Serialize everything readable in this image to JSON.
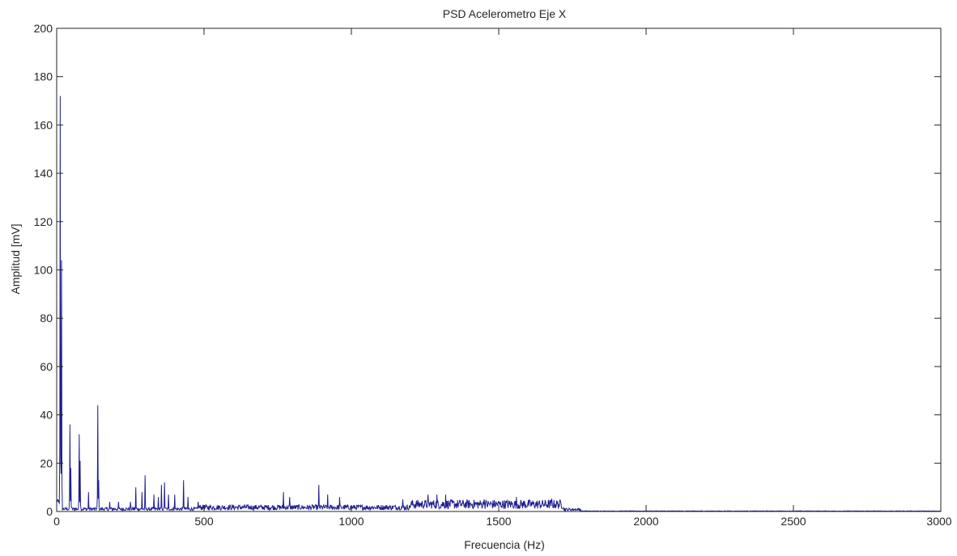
{
  "chart_data": {
    "type": "line",
    "title": "PSD Acelerometro Eje X",
    "xlabel": "Frecuencia (Hz)",
    "ylabel": "Amplitud [mV]",
    "xlim": [
      0,
      3000
    ],
    "ylim": [
      0,
      200
    ],
    "xticks": [
      0,
      500,
      1000,
      1500,
      2000,
      2500,
      3000
    ],
    "yticks": [
      0,
      20,
      40,
      60,
      80,
      100,
      120,
      140,
      160,
      180,
      200
    ],
    "grid": false,
    "legend": "none",
    "line_color": "#1f1f8f",
    "peaks": [
      {
        "x": 12,
        "y": 172
      },
      {
        "x": 16,
        "y": 104
      },
      {
        "x": 45,
        "y": 36
      },
      {
        "x": 48,
        "y": 18
      },
      {
        "x": 76,
        "y": 32
      },
      {
        "x": 79,
        "y": 21
      },
      {
        "x": 108,
        "y": 8
      },
      {
        "x": 140,
        "y": 44
      },
      {
        "x": 143,
        "y": 13
      },
      {
        "x": 180,
        "y": 4
      },
      {
        "x": 210,
        "y": 4
      },
      {
        "x": 250,
        "y": 4
      },
      {
        "x": 268,
        "y": 10
      },
      {
        "x": 290,
        "y": 8
      },
      {
        "x": 300,
        "y": 15
      },
      {
        "x": 330,
        "y": 7
      },
      {
        "x": 345,
        "y": 6
      },
      {
        "x": 355,
        "y": 11
      },
      {
        "x": 366,
        "y": 12
      },
      {
        "x": 380,
        "y": 7
      },
      {
        "x": 400,
        "y": 7
      },
      {
        "x": 430,
        "y": 13
      },
      {
        "x": 445,
        "y": 6
      },
      {
        "x": 480,
        "y": 4
      },
      {
        "x": 770,
        "y": 8
      },
      {
        "x": 790,
        "y": 6
      },
      {
        "x": 890,
        "y": 11
      },
      {
        "x": 920,
        "y": 7
      },
      {
        "x": 960,
        "y": 6
      },
      {
        "x": 1175,
        "y": 5
      },
      {
        "x": 1260,
        "y": 7
      },
      {
        "x": 1290,
        "y": 7
      },
      {
        "x": 1320,
        "y": 7
      },
      {
        "x": 1450,
        "y": 5
      },
      {
        "x": 1560,
        "y": 6
      },
      {
        "x": 1680,
        "y": 5
      }
    ],
    "noise_bands": [
      {
        "x_start": 480,
        "x_end": 1200,
        "level": 2
      },
      {
        "x_start": 1200,
        "x_end": 1720,
        "level": 3.5
      },
      {
        "x_start": 1720,
        "x_end": 1780,
        "level": 1
      },
      {
        "x_start": 1780,
        "x_end": 3000,
        "level": 0.2
      }
    ]
  }
}
